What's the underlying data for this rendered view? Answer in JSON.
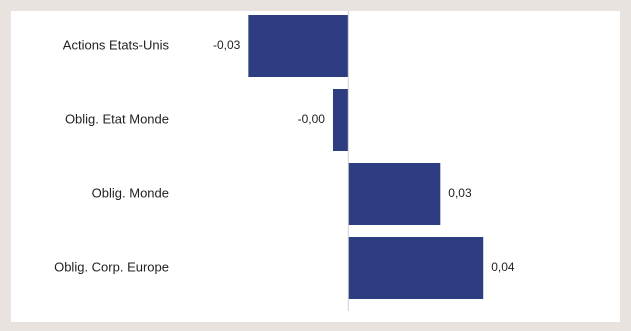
{
  "chart_data": {
    "type": "bar",
    "orientation": "horizontal",
    "categories": [
      "Actions Etats-Unis",
      "Oblig. Etat Monde",
      "Oblig. Monde",
      "Oblig. Corp. Europe"
    ],
    "values": [
      -0.0326,
      -0.005,
      0.03,
      0.044
    ],
    "value_labels": [
      "-0,03",
      "-0,00",
      "0,03",
      "0,04"
    ],
    "title": "",
    "xlabel": "",
    "ylabel": "",
    "xlim": [
      -0.11,
      0.0886
    ],
    "grid": false,
    "legend": "none",
    "colors": {
      "bar": "#2e3d82",
      "zero_line": "#d0d0d0",
      "text": "#222222"
    }
  }
}
